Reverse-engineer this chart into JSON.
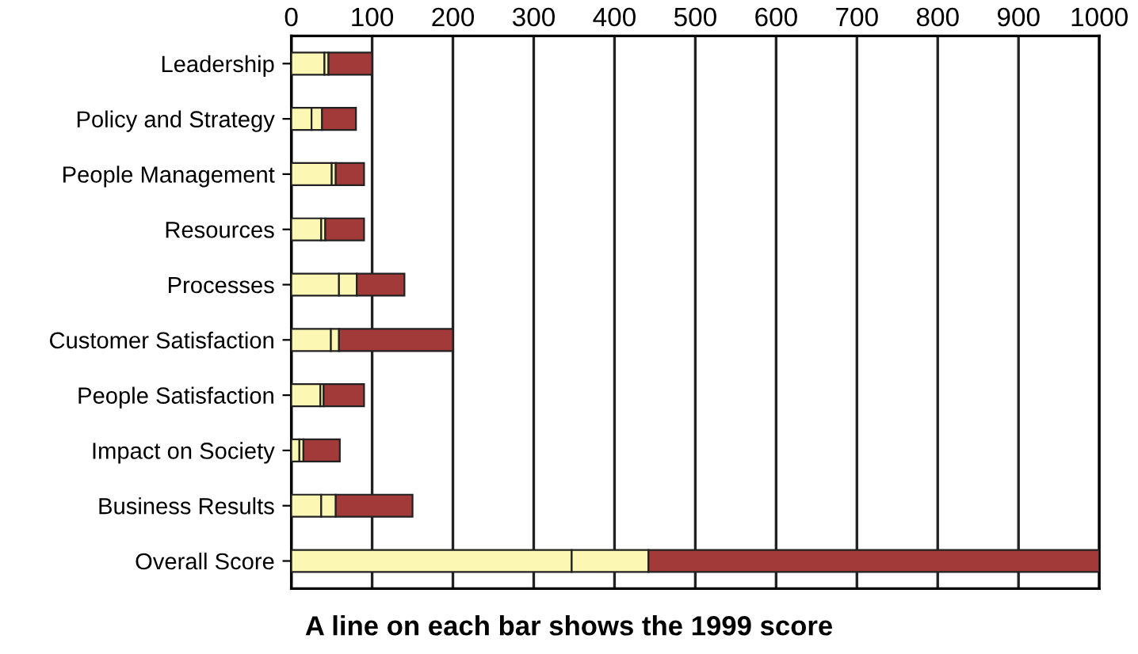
{
  "chart_data": {
    "type": "bar",
    "orientation": "horizontal",
    "stacked": true,
    "categories": [
      "Leadership",
      "Policy and Strategy",
      "People Management",
      "Resources",
      "Processes",
      "Customer Satisfaction",
      "People Satisfaction",
      "Impact on Society",
      "Business Results",
      "Overall Score"
    ],
    "series": [
      {
        "color": "#fdf7b4",
        "values": [
          41,
          25,
          50,
          37,
          59,
          49,
          36,
          10,
          37,
          347
        ]
      },
      {
        "color": "#fdf7b4",
        "values": [
          5,
          13,
          5,
          5,
          22,
          10,
          4,
          5,
          18,
          95
        ]
      },
      {
        "color": "#a33a3a",
        "values": [
          54,
          42,
          35,
          48,
          59,
          141,
          50,
          45,
          95,
          558
        ]
      }
    ],
    "xlim": [
      0,
      1000
    ],
    "xticks": [
      0,
      100,
      200,
      300,
      400,
      500,
      600,
      700,
      800,
      900,
      1000
    ],
    "grid": "x",
    "legend": false,
    "annotations": [
      "A line on each bar shows the 1999 score"
    ]
  }
}
